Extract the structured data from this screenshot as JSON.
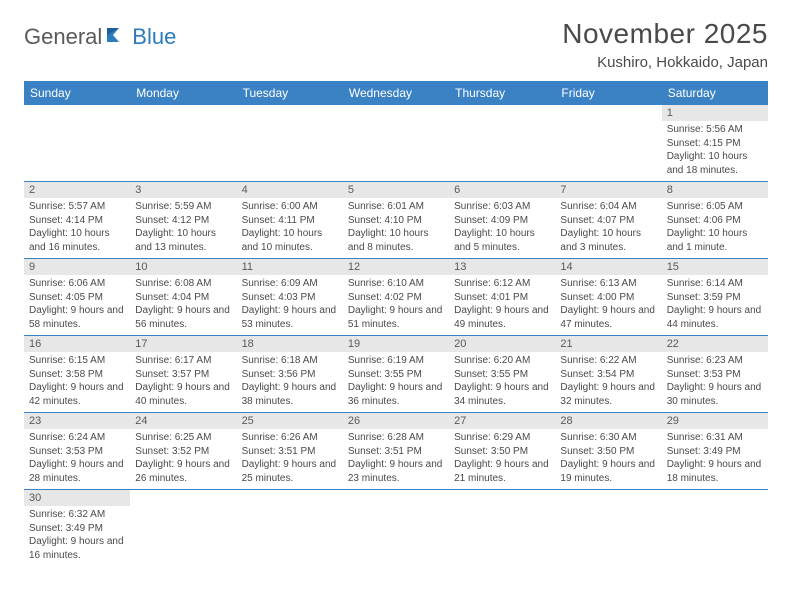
{
  "logo": {
    "part1": "General",
    "part2": "Blue"
  },
  "title": "November 2025",
  "location": "Kushiro, Hokkaido, Japan",
  "colors": {
    "header_bg": "#3b82c4",
    "header_text": "#ffffff",
    "daynum_bg": "#e7e7e7",
    "border": "#3b82c4",
    "text": "#4a4a4a",
    "logo_blue": "#2b7bbf"
  },
  "daynames": [
    "Sunday",
    "Monday",
    "Tuesday",
    "Wednesday",
    "Thursday",
    "Friday",
    "Saturday"
  ],
  "weeks": [
    [
      null,
      null,
      null,
      null,
      null,
      null,
      {
        "n": "1",
        "sr": "5:56 AM",
        "ss": "4:15 PM",
        "dl": "10 hours and 18 minutes."
      }
    ],
    [
      {
        "n": "2",
        "sr": "5:57 AM",
        "ss": "4:14 PM",
        "dl": "10 hours and 16 minutes."
      },
      {
        "n": "3",
        "sr": "5:59 AM",
        "ss": "4:12 PM",
        "dl": "10 hours and 13 minutes."
      },
      {
        "n": "4",
        "sr": "6:00 AM",
        "ss": "4:11 PM",
        "dl": "10 hours and 10 minutes."
      },
      {
        "n": "5",
        "sr": "6:01 AM",
        "ss": "4:10 PM",
        "dl": "10 hours and 8 minutes."
      },
      {
        "n": "6",
        "sr": "6:03 AM",
        "ss": "4:09 PM",
        "dl": "10 hours and 5 minutes."
      },
      {
        "n": "7",
        "sr": "6:04 AM",
        "ss": "4:07 PM",
        "dl": "10 hours and 3 minutes."
      },
      {
        "n": "8",
        "sr": "6:05 AM",
        "ss": "4:06 PM",
        "dl": "10 hours and 1 minute."
      }
    ],
    [
      {
        "n": "9",
        "sr": "6:06 AM",
        "ss": "4:05 PM",
        "dl": "9 hours and 58 minutes."
      },
      {
        "n": "10",
        "sr": "6:08 AM",
        "ss": "4:04 PM",
        "dl": "9 hours and 56 minutes."
      },
      {
        "n": "11",
        "sr": "6:09 AM",
        "ss": "4:03 PM",
        "dl": "9 hours and 53 minutes."
      },
      {
        "n": "12",
        "sr": "6:10 AM",
        "ss": "4:02 PM",
        "dl": "9 hours and 51 minutes."
      },
      {
        "n": "13",
        "sr": "6:12 AM",
        "ss": "4:01 PM",
        "dl": "9 hours and 49 minutes."
      },
      {
        "n": "14",
        "sr": "6:13 AM",
        "ss": "4:00 PM",
        "dl": "9 hours and 47 minutes."
      },
      {
        "n": "15",
        "sr": "6:14 AM",
        "ss": "3:59 PM",
        "dl": "9 hours and 44 minutes."
      }
    ],
    [
      {
        "n": "16",
        "sr": "6:15 AM",
        "ss": "3:58 PM",
        "dl": "9 hours and 42 minutes."
      },
      {
        "n": "17",
        "sr": "6:17 AM",
        "ss": "3:57 PM",
        "dl": "9 hours and 40 minutes."
      },
      {
        "n": "18",
        "sr": "6:18 AM",
        "ss": "3:56 PM",
        "dl": "9 hours and 38 minutes."
      },
      {
        "n": "19",
        "sr": "6:19 AM",
        "ss": "3:55 PM",
        "dl": "9 hours and 36 minutes."
      },
      {
        "n": "20",
        "sr": "6:20 AM",
        "ss": "3:55 PM",
        "dl": "9 hours and 34 minutes."
      },
      {
        "n": "21",
        "sr": "6:22 AM",
        "ss": "3:54 PM",
        "dl": "9 hours and 32 minutes."
      },
      {
        "n": "22",
        "sr": "6:23 AM",
        "ss": "3:53 PM",
        "dl": "9 hours and 30 minutes."
      }
    ],
    [
      {
        "n": "23",
        "sr": "6:24 AM",
        "ss": "3:53 PM",
        "dl": "9 hours and 28 minutes."
      },
      {
        "n": "24",
        "sr": "6:25 AM",
        "ss": "3:52 PM",
        "dl": "9 hours and 26 minutes."
      },
      {
        "n": "25",
        "sr": "6:26 AM",
        "ss": "3:51 PM",
        "dl": "9 hours and 25 minutes."
      },
      {
        "n": "26",
        "sr": "6:28 AM",
        "ss": "3:51 PM",
        "dl": "9 hours and 23 minutes."
      },
      {
        "n": "27",
        "sr": "6:29 AM",
        "ss": "3:50 PM",
        "dl": "9 hours and 21 minutes."
      },
      {
        "n": "28",
        "sr": "6:30 AM",
        "ss": "3:50 PM",
        "dl": "9 hours and 19 minutes."
      },
      {
        "n": "29",
        "sr": "6:31 AM",
        "ss": "3:49 PM",
        "dl": "9 hours and 18 minutes."
      }
    ],
    [
      {
        "n": "30",
        "sr": "6:32 AM",
        "ss": "3:49 PM",
        "dl": "9 hours and 16 minutes."
      },
      null,
      null,
      null,
      null,
      null,
      null
    ]
  ],
  "labels": {
    "sunrise": "Sunrise:",
    "sunset": "Sunset:",
    "daylight": "Daylight:"
  }
}
